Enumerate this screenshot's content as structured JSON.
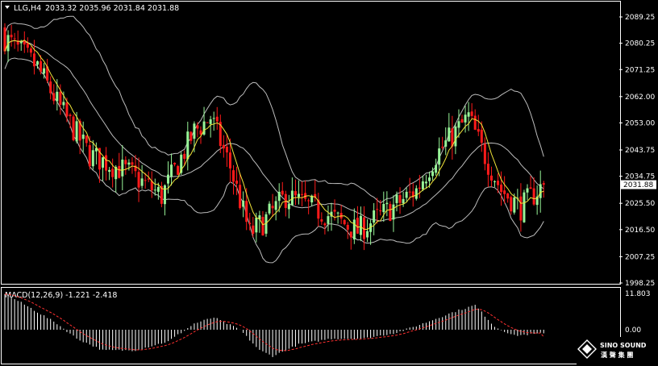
{
  "header": {
    "symbol_label": "LLG,H4",
    "ohlc_text": "2033.32 2035.96 2031.84 2031.88"
  },
  "macd_header": {
    "label": "MACD(12,26,9) -1.221 -2.418"
  },
  "price_panel": {
    "current_price_label": "2031.88"
  },
  "logo": {
    "line1": "SINO SOUND",
    "line2": "漢 聲 集 團"
  },
  "colors": {
    "background": "#000000",
    "bull": "#98f598",
    "bear": "#ff1a1a",
    "bands": "#bcbcbc",
    "ma": "#f2e53a",
    "macd_hist": "#ffffff",
    "macd_signal": "#ff3030",
    "frame": "#ffffff"
  },
  "chart_data": [
    {
      "type": "candlestick",
      "name": "price",
      "timeframe": "H4",
      "y_ticks": [
        "2089.25",
        "2080.25",
        "2071.25",
        "2062.00",
        "2053.00",
        "2043.75",
        "2034.75",
        "2025.50",
        "2016.50",
        "2007.25",
        "1998.25"
      ],
      "ylim": [
        1998.25,
        2089.25
      ],
      "last_price": 2031.88,
      "trend_anchors": [
        [
          0,
          2082
        ],
        [
          10,
          2072
        ],
        [
          17,
          2058
        ],
        [
          26,
          2042
        ],
        [
          30,
          2040
        ],
        [
          38,
          2036
        ],
        [
          48,
          2028
        ],
        [
          58,
          2050
        ],
        [
          63,
          2055
        ],
        [
          69,
          2038
        ],
        [
          75,
          2015
        ],
        [
          80,
          2020
        ],
        [
          86,
          2028
        ],
        [
          98,
          2022
        ],
        [
          108,
          2016
        ],
        [
          116,
          2022
        ],
        [
          126,
          2030
        ],
        [
          132,
          2042
        ],
        [
          142,
          2055
        ],
        [
          146,
          2044
        ],
        [
          152,
          2030
        ],
        [
          158,
          2024
        ],
        [
          165,
          2032
        ]
      ],
      "overlays": [
        "bollinger-bands",
        "moving-average"
      ]
    },
    {
      "type": "bar",
      "name": "MACD(12,26,9)",
      "macd": -1.221,
      "signal": -2.418,
      "y_ticks": [
        "11.803",
        "0.00",
        "-9.595"
      ],
      "ylim": [
        -9.595,
        11.803
      ],
      "macd_anchors": [
        [
          0,
          11.8
        ],
        [
          8,
          7
        ],
        [
          16,
          2
        ],
        [
          22,
          -3
        ],
        [
          30,
          -7
        ],
        [
          40,
          -7
        ],
        [
          50,
          -4
        ],
        [
          58,
          2
        ],
        [
          64,
          4
        ],
        [
          72,
          0
        ],
        [
          78,
          -7
        ],
        [
          82,
          -9
        ],
        [
          90,
          -5
        ],
        [
          100,
          -3
        ],
        [
          110,
          -3
        ],
        [
          120,
          -1
        ],
        [
          128,
          2
        ],
        [
          138,
          6
        ],
        [
          144,
          8
        ],
        [
          150,
          1
        ],
        [
          156,
          -2
        ],
        [
          165,
          -1.2
        ]
      ]
    }
  ]
}
